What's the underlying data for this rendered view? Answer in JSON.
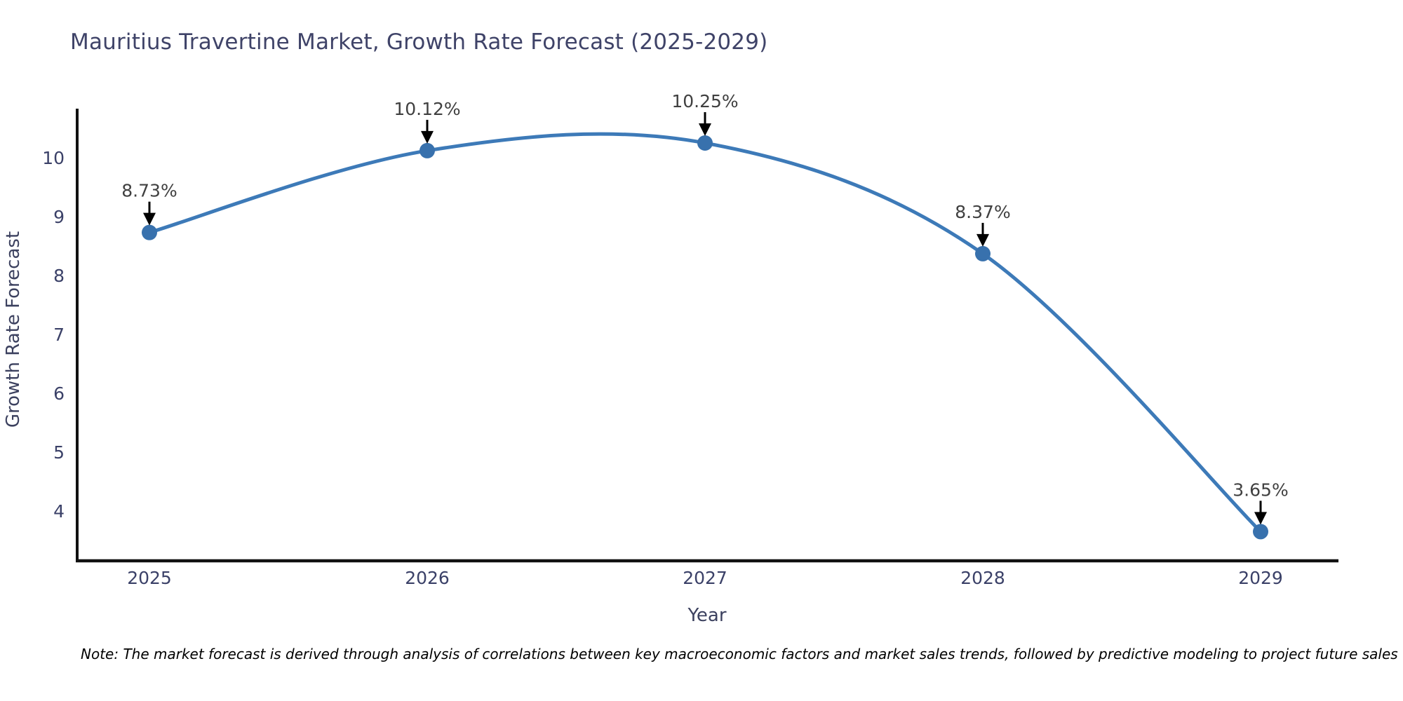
{
  "page": {
    "title": "Mauritius Travertine Market, Growth Rate Forecast (2025-2029)",
    "note": "Note: The market forecast is derived through analysis of correlations between key macroeconomic factors and market sales trends, followed by predictive modeling to project future sales"
  },
  "chart_data": {
    "type": "line",
    "title": "Mauritius Travertine Market, Growth Rate Forecast (2025-2029)",
    "xlabel": "Year",
    "ylabel": "Growth Rate Forecast",
    "categories": [
      "2025",
      "2026",
      "2027",
      "2028",
      "2029"
    ],
    "values": [
      8.73,
      10.12,
      10.25,
      8.37,
      3.65
    ],
    "point_labels": [
      "8.73%",
      "10.12%",
      "10.25%",
      "8.37%",
      "3.65%"
    ],
    "yticks": [
      4,
      5,
      6,
      7,
      8,
      9,
      10
    ],
    "ylim": [
      3.15,
      10.85
    ],
    "grid": false,
    "legend_position": "none",
    "annotation_style": "value label above point with black down-arrow",
    "colors": {
      "line": "#3d7ab8",
      "marker": "#3871ad",
      "axis": "#111111",
      "tick_label": "#3b4168",
      "axis_title": "#3c415f",
      "chart_title": "#3f4368",
      "annotation_text": "#404040",
      "arrow": "#000000",
      "note_text": "#000000"
    }
  }
}
